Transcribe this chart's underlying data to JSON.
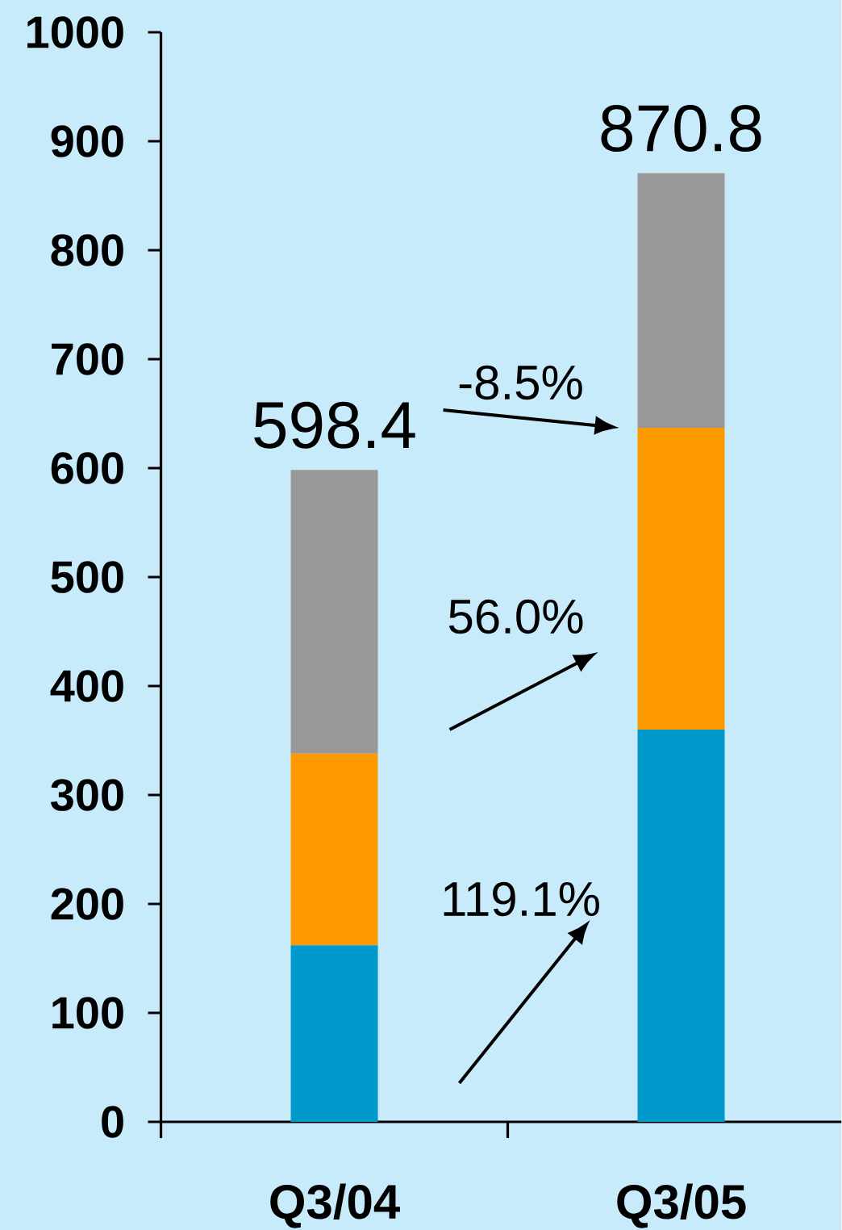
{
  "chart_data": {
    "type": "bar",
    "stacked": true,
    "categories": [
      "Q3/04",
      "Q3/05"
    ],
    "series": [
      {
        "color": "#0099cc",
        "values": [
          162,
          360
        ]
      },
      {
        "color": "#ff9900",
        "values": [
          176,
          277
        ]
      },
      {
        "color": "#999999",
        "values": [
          260.4,
          233.8
        ]
      }
    ],
    "totals": [
      "598.4",
      "870.8"
    ],
    "ylim": [
      0,
      1000
    ],
    "yticks": [
      0,
      100,
      200,
      300,
      400,
      500,
      600,
      700,
      800,
      900,
      1000
    ],
    "annotations": [
      "-8.5%",
      "56.0%",
      "119.1%"
    ]
  }
}
